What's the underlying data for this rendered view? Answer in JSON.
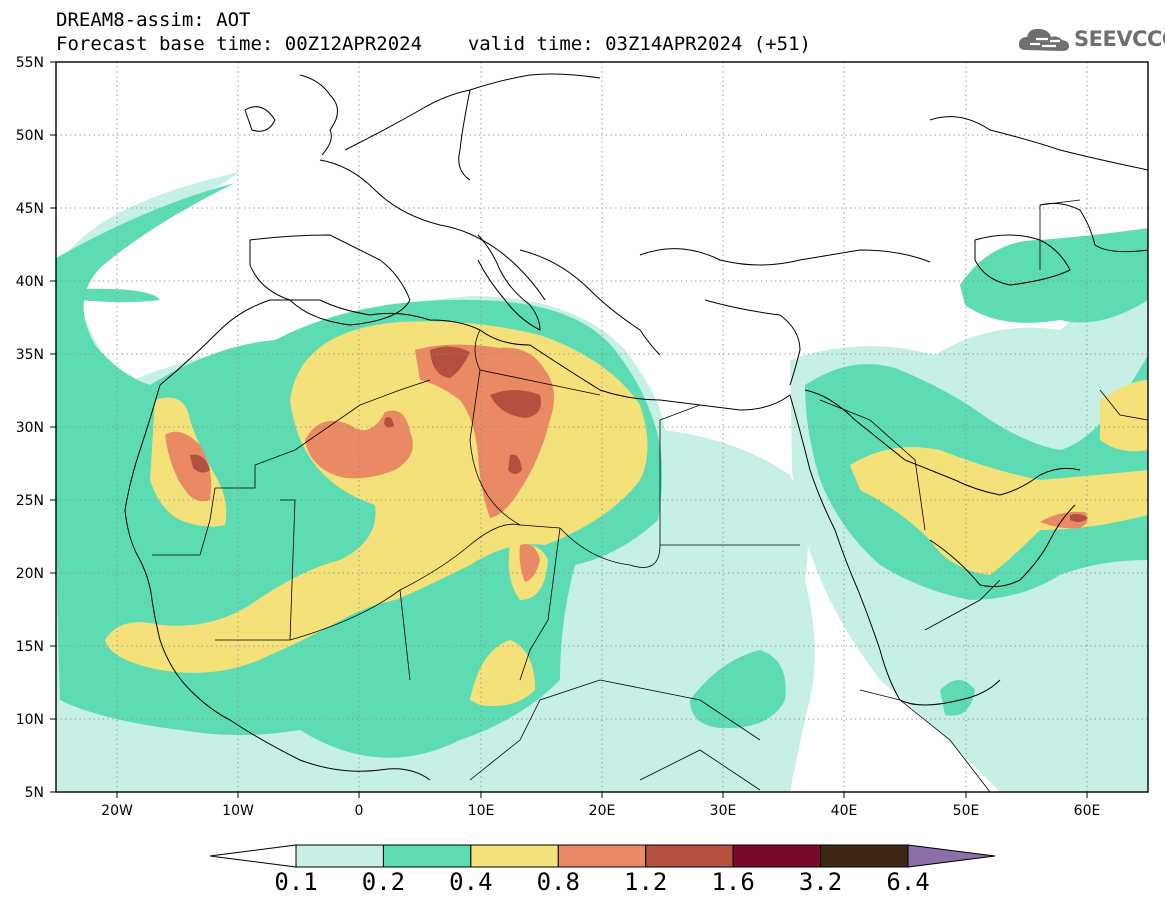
{
  "header": {
    "title": "DREAM8-assim: AOT",
    "base_label": "Forecast base time: 00Z12APR2024",
    "valid_label": "valid time: 03Z14APR2024 (+51)"
  },
  "logo": {
    "text": "SEEVCCC",
    "icon": "cloud-icon",
    "color": "#6f6f6f"
  },
  "map": {
    "variable": "AOT",
    "lat_range": [
      5,
      55
    ],
    "lon_range": [
      -25,
      65
    ],
    "lat_ticks": [
      "5N",
      "10N",
      "15N",
      "20N",
      "25N",
      "30N",
      "35N",
      "40N",
      "45N",
      "50N",
      "55N"
    ],
    "lon_ticks": [
      "20W",
      "10W",
      "0",
      "10E",
      "20E",
      "30E",
      "40E",
      "50E",
      "60E"
    ],
    "grid": "dotted"
  },
  "colorbar": {
    "boundaries": [
      "0.1",
      "0.2",
      "0.4",
      "0.8",
      "1.2",
      "1.6",
      "3.2",
      "6.4"
    ],
    "colors": [
      "#ffffff",
      "#c6f0e6",
      "#5ddcb4",
      "#f5e17a",
      "#e98a64",
      "#b45040",
      "#7a0a28",
      "#3c2814",
      "#8c6ea8"
    ]
  }
}
